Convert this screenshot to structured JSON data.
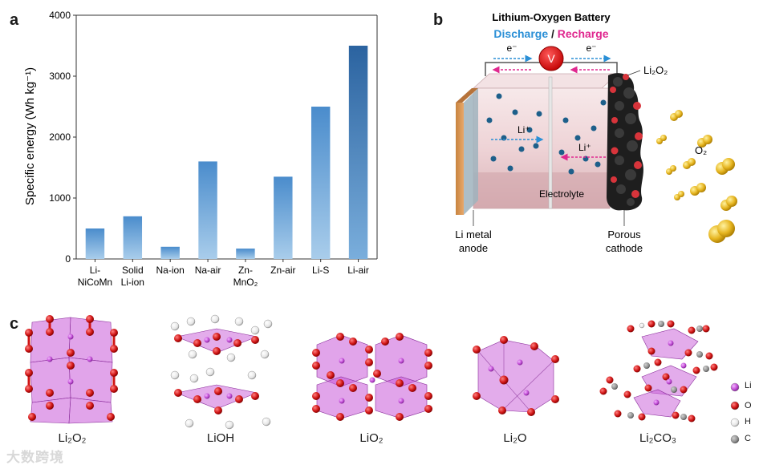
{
  "panels": {
    "a": {
      "letter": "a"
    },
    "b": {
      "letter": "b"
    },
    "c": {
      "letter": "c"
    }
  },
  "chart_data": {
    "type": "bar",
    "categories": [
      "Li-NiCoMn",
      "Solid Li-ion",
      "Na-ion",
      "Na-air",
      "Zn-MnO2",
      "Zn-air",
      "Li-S",
      "Li-air"
    ],
    "category_lines": [
      [
        "Li-",
        "NiCoMn"
      ],
      [
        "Solid",
        "Li-ion"
      ],
      [
        "Na-ion"
      ],
      [
        "Na-air"
      ],
      [
        "Zn-",
        "MnO₂"
      ],
      [
        "Zn-air"
      ],
      [
        "Li-S"
      ],
      [
        "Li-air"
      ]
    ],
    "values": [
      500,
      700,
      200,
      1600,
      170,
      1350,
      2500,
      3500
    ],
    "ylabel": "Specific energy (Wh kg⁻¹)",
    "xlabel": "",
    "ylim": [
      0,
      4000
    ],
    "yticks": [
      0,
      1000,
      2000,
      3000,
      4000
    ],
    "grid": false,
    "bar_color": "#5b9bd5",
    "highlight_color": "#2e6aa6"
  },
  "battery": {
    "title": "Lithium-Oxygen Battery",
    "discharge": "Discharge",
    "slash": " / ",
    "recharge": "Recharge",
    "electron_left": "e⁻",
    "electron_right": "e⁻",
    "voltmeter": "V",
    "li_ion_top": "Li⁺",
    "li_ion_bottom": "Li⁺",
    "product": "Li₂O₂",
    "gas": "O₂",
    "electrolyte": "Electrolyte",
    "anode_line1": "Li metal",
    "anode_line2": "anode",
    "cathode_line1": "Porous",
    "cathode_line2": "cathode",
    "discharge_color": "#2a8fd6",
    "recharge_color": "#e0288f"
  },
  "structures": [
    {
      "label": "Li₂O₂"
    },
    {
      "label": "LiOH"
    },
    {
      "label": "LiO₂"
    },
    {
      "label": "Li₂O"
    },
    {
      "label": "Li₂CO₃"
    }
  ],
  "legend": [
    {
      "label": "Li",
      "color": "#c24ed6"
    },
    {
      "label": "O",
      "color": "#d01515"
    },
    {
      "label": "H",
      "color": "#ffffff"
    },
    {
      "label": "C",
      "color": "#8a8a8a"
    }
  ],
  "watermark": "大数跨境"
}
